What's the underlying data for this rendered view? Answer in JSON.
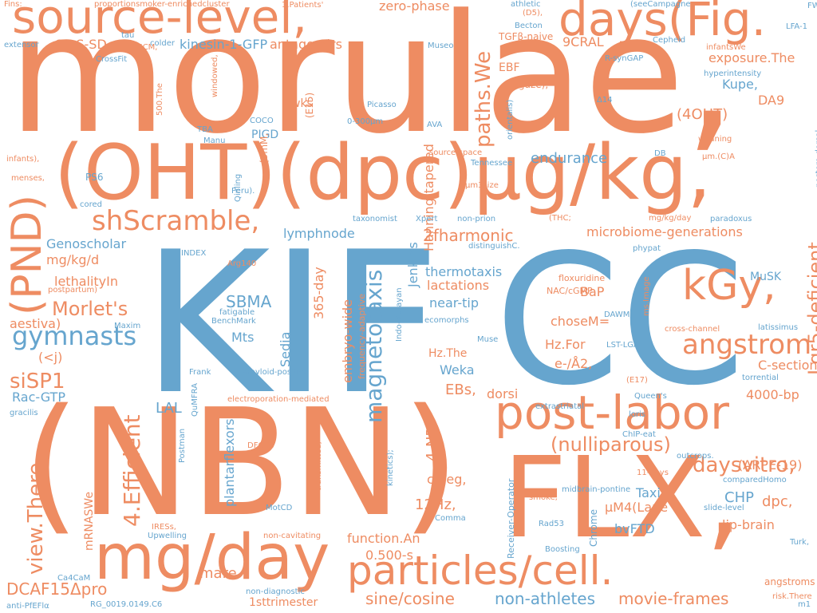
{
  "colors": {
    "orange": "#ee8c62",
    "blue": "#66a5ce",
    "background": "#ffffff"
  },
  "words": [
    {
      "text": "morulae,",
      "c": "orange"
    },
    {
      "text": "KIF",
      "c": "blue"
    },
    {
      "text": "CC",
      "c": "blue"
    },
    {
      "text": "(NBN)",
      "c": "orange"
    },
    {
      "text": "FLX,",
      "c": "orange"
    },
    {
      "text": "(OHT)(dpc)µg/kg,",
      "c": "orange"
    },
    {
      "text": "source-level,",
      "c": "orange"
    },
    {
      "text": "days(Fig.",
      "c": "orange"
    },
    {
      "text": "mg/day",
      "c": "orange"
    },
    {
      "text": "particles/cell.",
      "c": "orange"
    },
    {
      "text": "post-labor",
      "c": "orange"
    },
    {
      "text": "kGy,",
      "c": "orange"
    },
    {
      "text": "(PND)",
      "c": "orange"
    },
    {
      "text": "angstrom",
      "c": "orange"
    },
    {
      "text": "shScramble,",
      "c": "orange"
    },
    {
      "text": "magnetotaxis",
      "c": "blue"
    },
    {
      "text": "gymnasts",
      "c": "blue"
    },
    {
      "text": "4.Efficient",
      "c": "orange"
    },
    {
      "text": "view.There",
      "c": "orange"
    },
    {
      "text": "Lgr5-deficient",
      "c": "orange"
    },
    {
      "text": "paths.We",
      "c": "orange"
    },
    {
      "text": "siSP1",
      "c": "orange"
    },
    {
      "text": "(nulliparous)",
      "c": "orange"
    },
    {
      "text": "daysvitro,",
      "c": "orange"
    },
    {
      "text": "Morlet's",
      "c": "orange"
    },
    {
      "text": "DCAF15Δpro",
      "c": "orange"
    },
    {
      "text": "sine/cosine",
      "c": "orange"
    },
    {
      "text": "non-athletes",
      "c": "blue"
    },
    {
      "text": "movie-frames",
      "c": "orange"
    },
    {
      "text": "2fharmonic",
      "c": "orange"
    },
    {
      "text": "endurance",
      "c": "blue"
    },
    {
      "text": "kinesin-1-GFP",
      "c": "blue"
    },
    {
      "text": "antagomirs",
      "c": "orange"
    },
    {
      "text": "GF-S-SD",
      "c": "orange"
    },
    {
      "text": "zero-phase",
      "c": "orange"
    },
    {
      "text": "9CRAL",
      "c": "orange"
    },
    {
      "text": "exposure.The",
      "c": "orange"
    },
    {
      "text": "(4OHT)",
      "c": "orange"
    },
    {
      "text": "DA9",
      "c": "orange"
    },
    {
      "text": "Kupe,",
      "c": "blue"
    },
    {
      "text": "microbiome-generations",
      "c": "orange"
    },
    {
      "text": "lymphnode",
      "c": "blue"
    },
    {
      "text": "Genoscholar",
      "c": "blue"
    },
    {
      "text": "mg/kg/d",
      "c": "orange"
    },
    {
      "text": "lethalityIn",
      "c": "orange"
    },
    {
      "text": "SBMA",
      "c": "blue"
    },
    {
      "text": "aestiva)",
      "c": "orange"
    },
    {
      "text": "(<j)",
      "c": "orange"
    },
    {
      "text": "Rac-GTP",
      "c": "blue"
    },
    {
      "text": "LAL",
      "c": "blue"
    },
    {
      "text": "Mts",
      "c": "blue"
    },
    {
      "text": "365-day",
      "c": "orange"
    },
    {
      "text": "Sedia",
      "c": "blue"
    },
    {
      "text": "Jenkins",
      "c": "blue"
    },
    {
      "text": "embryo-wide",
      "c": "orange"
    },
    {
      "text": "thermotaxis",
      "c": "blue"
    },
    {
      "text": "lactations",
      "c": "orange"
    },
    {
      "text": "near-tip",
      "c": "blue"
    },
    {
      "text": "BaP",
      "c": "orange"
    },
    {
      "text": "choseM=",
      "c": "orange"
    },
    {
      "text": "Hz.The",
      "c": "orange"
    },
    {
      "text": "Weka",
      "c": "blue"
    },
    {
      "text": "EBs,",
      "c": "orange"
    },
    {
      "text": "dorsi",
      "c": "orange"
    },
    {
      "text": "4-NP,",
      "c": "orange"
    },
    {
      "text": "c/deg,",
      "c": "orange"
    },
    {
      "text": "12Hz,",
      "c": "orange"
    },
    {
      "text": "function.An",
      "c": "orange"
    },
    {
      "text": "0.500-s",
      "c": "orange"
    },
    {
      "text": "mare",
      "c": "orange"
    },
    {
      "text": "plantarflexors",
      "c": "blue"
    },
    {
      "text": "CHP",
      "c": "blue"
    },
    {
      "text": "dpc,",
      "c": "orange"
    },
    {
      "text": "lip-brain",
      "c": "orange"
    },
    {
      "text": "µM4(Lane",
      "c": "orange"
    },
    {
      "text": "Taxi",
      "c": "blue"
    },
    {
      "text": "bvFTD",
      "c": "blue"
    },
    {
      "text": "Hz.For",
      "c": "orange"
    },
    {
      "text": "e-/Å2,",
      "c": "orange"
    },
    {
      "text": "C-section",
      "c": "orange"
    },
    {
      "text": "MuSK",
      "c": "blue"
    },
    {
      "text": "4000-bp",
      "c": "orange"
    },
    {
      "text": "(ARPE-19)",
      "c": "orange"
    },
    {
      "text": "wks",
      "c": "orange"
    },
    {
      "text": "PIGD",
      "c": "blue"
    },
    {
      "text": "Hanning-tapered",
      "c": "orange"
    },
    {
      "text": "EBF",
      "c": "orange"
    },
    {
      "text": "mRNASWe",
      "c": "orange"
    },
    {
      "text": "angstroms",
      "c": "orange"
    },
    {
      "text": "1sttrimester",
      "c": "orange"
    },
    {
      "text": "PS6",
      "c": "blue"
    },
    {
      "text": "frequency-adaptive",
      "c": "orange"
    },
    {
      "text": "Receiver-Operator",
      "c": "blue"
    },
    {
      "text": "Chrome",
      "c": "blue"
    },
    {
      "text": "Fins:",
      "c": "orange"
    },
    {
      "text": "proportionsmoker-enrichedcluster",
      "c": "orange"
    },
    {
      "text": "1.Patients'",
      "c": "orange"
    },
    {
      "text": "athletic",
      "c": "blue"
    },
    {
      "text": "(D5),",
      "c": "orange"
    },
    {
      "text": "TGFβ-naive",
      "c": "orange"
    },
    {
      "text": "Becton",
      "c": "blue"
    },
    {
      "text": "(seeCampagne",
      "c": "blue"
    },
    {
      "text": "FWML",
      "c": "blue"
    },
    {
      "text": "LFA-1",
      "c": "blue"
    },
    {
      "text": "extensor",
      "c": "blue"
    },
    {
      "text": "tau",
      "c": "blue"
    },
    {
      "text": "colder",
      "c": "blue"
    },
    {
      "text": "EPSCM,",
      "c": "orange"
    },
    {
      "text": "CrossFit",
      "c": "blue"
    },
    {
      "text": "Museo",
      "c": "blue"
    },
    {
      "text": "R-synGAP",
      "c": "blue"
    },
    {
      "text": "Cepheid",
      "c": "blue"
    },
    {
      "text": "infantsWe",
      "c": "orange"
    },
    {
      "text": "gaze),",
      "c": "orange"
    },
    {
      "text": "hyperintensity",
      "c": "blue"
    },
    {
      "text": "weaning",
      "c": "orange"
    },
    {
      "text": "µm.(C)A",
      "c": "orange"
    },
    {
      "text": "source-space",
      "c": "orange"
    },
    {
      "text": "Tennessee",
      "c": "blue"
    },
    {
      "text": "µm3size",
      "c": "orange"
    },
    {
      "text": "infants),",
      "c": "orange"
    },
    {
      "text": "menses,",
      "c": "orange"
    },
    {
      "text": "cored",
      "c": "blue"
    },
    {
      "text": "Qinling",
      "c": "blue"
    },
    {
      "text": "Peru).",
      "c": "blue"
    },
    {
      "text": "taxonomist",
      "c": "blue"
    },
    {
      "text": "Xpert",
      "c": "blue"
    },
    {
      "text": "non-prion",
      "c": "blue"
    },
    {
      "text": "(THC;",
      "c": "orange"
    },
    {
      "text": "mg/kg/day",
      "c": "orange"
    },
    {
      "text": "paradoxus",
      "c": "blue"
    },
    {
      "text": "postero-dorsal",
      "c": "blue"
    },
    {
      "text": "DB",
      "c": "blue"
    },
    {
      "text": "phypat",
      "c": "blue"
    },
    {
      "text": "INDEX",
      "c": "blue"
    },
    {
      "text": "Arg140",
      "c": "orange"
    },
    {
      "text": "distinguishC.",
      "c": "blue"
    },
    {
      "text": "postpartum)",
      "c": "orange"
    },
    {
      "text": "fatigable",
      "c": "blue"
    },
    {
      "text": "BenchMark",
      "c": "blue"
    },
    {
      "text": "Maxim",
      "c": "blue"
    },
    {
      "text": "Indo-Malayan",
      "c": "blue"
    },
    {
      "text": "ecomorphs",
      "c": "blue"
    },
    {
      "text": "floxuridine",
      "c": "orange"
    },
    {
      "text": "NAC/cGMP",
      "c": "orange"
    },
    {
      "text": "DAWM",
      "c": "blue"
    },
    {
      "text": "ms.Image",
      "c": "orange"
    },
    {
      "text": "cross-channel",
      "c": "orange"
    },
    {
      "text": "latissimus",
      "c": "blue"
    },
    {
      "text": "Muse",
      "c": "blue"
    },
    {
      "text": "LST-LGA,",
      "c": "blue"
    },
    {
      "text": "Frank",
      "c": "blue"
    },
    {
      "text": "amyloid-positive",
      "c": "blue"
    },
    {
      "text": "(E17)",
      "c": "orange"
    },
    {
      "text": "torrential",
      "c": "blue"
    },
    {
      "text": "QuMFRA",
      "c": "blue"
    },
    {
      "text": "gracilis",
      "c": "blue"
    },
    {
      "text": "electroporation-mediated",
      "c": "orange"
    },
    {
      "text": "Queen's",
      "c": "blue"
    },
    {
      "text": "extrastriatal",
      "c": "blue"
    },
    {
      "text": "loris",
      "c": "blue"
    },
    {
      "text": "ChIP-eat",
      "c": "blue"
    },
    {
      "text": "Postman",
      "c": "blue"
    },
    {
      "text": "DFCGs",
      "c": "orange"
    },
    {
      "text": "transmitted;",
      "c": "orange"
    },
    {
      "text": "kinetics);",
      "c": "blue"
    },
    {
      "text": "outcrops.",
      "c": "blue"
    },
    {
      "text": "11-days",
      "c": "orange"
    },
    {
      "text": "midbrain-pontine",
      "c": "blue"
    },
    {
      "text": "comparedHomo",
      "c": "blue"
    },
    {
      "text": "smoke,",
      "c": "orange"
    },
    {
      "text": "slide-level",
      "c": "blue"
    },
    {
      "text": "MotCD",
      "c": "blue"
    },
    {
      "text": "Comma",
      "c": "blue"
    },
    {
      "text": "IRESs,",
      "c": "orange"
    },
    {
      "text": "Upwelling",
      "c": "blue"
    },
    {
      "text": "non-cavitating",
      "c": "orange"
    },
    {
      "text": "Rad53",
      "c": "blue"
    },
    {
      "text": "Boosting",
      "c": "blue"
    },
    {
      "text": "Turk,",
      "c": "blue"
    },
    {
      "text": "Ca4CaM",
      "c": "blue"
    },
    {
      "text": "non-diagnostic",
      "c": "blue"
    },
    {
      "text": "RG_0019.0149.C6",
      "c": "blue"
    },
    {
      "text": "risk.There",
      "c": "orange"
    },
    {
      "text": "m1",
      "c": "blue"
    },
    {
      "text": "anti-PfEFlα",
      "c": "blue"
    },
    {
      "text": "500.The",
      "c": "orange"
    },
    {
      "text": "windowed,",
      "c": "orange"
    },
    {
      "text": "Picasso",
      "c": "blue"
    },
    {
      "text": "0-300µm",
      "c": "blue"
    },
    {
      "text": "AVA",
      "c": "blue"
    },
    {
      "text": "orientalis)",
      "c": "blue"
    },
    {
      "text": "COCO",
      "c": "blue"
    },
    {
      "text": "TBA",
      "c": "blue"
    },
    {
      "text": "Manu",
      "c": "blue"
    },
    {
      "text": "(3mM,",
      "c": "orange"
    },
    {
      "text": "(E15)",
      "c": "orange"
    },
    {
      "text": "Δ14",
      "c": "blue"
    }
  ]
}
